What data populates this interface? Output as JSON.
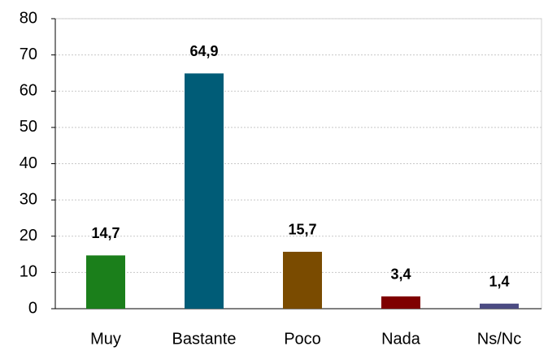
{
  "chart_data": {
    "type": "bar",
    "categories": [
      "Muy",
      "Bastante",
      "Poco",
      "Nada",
      "Ns/Nc"
    ],
    "values": [
      14.7,
      64.9,
      15.7,
      3.4,
      1.4
    ],
    "value_labels": [
      "14,7",
      "64,9",
      "15,7",
      "3,4",
      "1,4"
    ],
    "colors": [
      "#1b7f1b",
      "#005c77",
      "#7a4b00",
      "#7f0000",
      "#4b4b82"
    ],
    "ylim": [
      0,
      80
    ],
    "yticks": [
      0,
      10,
      20,
      30,
      40,
      50,
      60,
      70,
      80
    ],
    "grid": true
  }
}
